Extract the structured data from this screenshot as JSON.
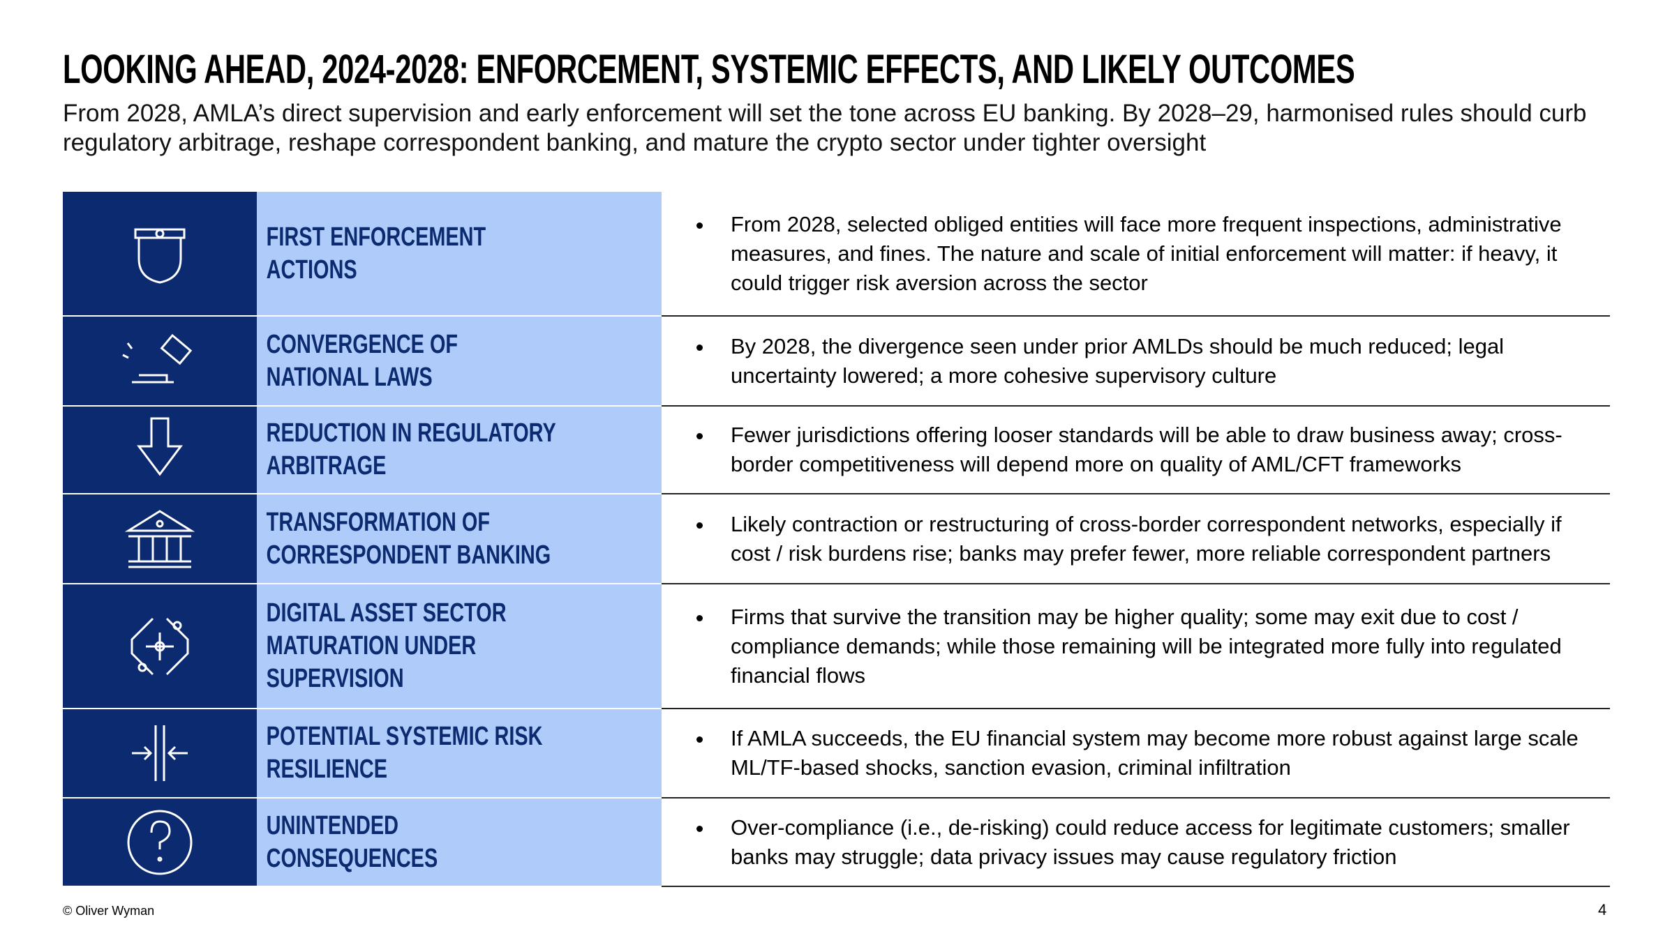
{
  "header": {
    "title": "LOOKING AHEAD, 2024-2028: ENFORCEMENT, SYSTEMIC EFFECTS, AND LIKELY OUTCOMES",
    "subtitle": "From 2028, AMLA’s direct supervision and early enforcement will set the tone across EU banking. By 2028–29, harmonised rules should curb regulatory arbitrage, reshape correspondent banking, and mature the crypto sector under tighter oversight"
  },
  "rows": [
    {
      "label": "FIRST ENFORCEMENT ACTIONS",
      "bullet": "From 2028, selected obliged entities will face more frequent inspections, administrative measures, and fines. The nature and scale of initial enforcement will matter: if heavy, it could trigger risk aversion across the sector"
    },
    {
      "label": "CONVERGENCE OF NATIONAL LAWS",
      "bullet": "By 2028, the divergence seen under prior AMLDs should be much reduced; legal uncertainty lowered; a more cohesive supervisory culture"
    },
    {
      "label": "REDUCTION IN REGULATORY ARBITRAGE",
      "bullet": "Fewer jurisdictions offering looser standards will be able to draw business away; cross-border competitiveness will depend more on quality of AML/CFT frameworks"
    },
    {
      "label": "TRANSFORMATION OF CORRESPONDENT BANKING",
      "bullet": "Likely contraction or restructuring of cross-border correspondent networks, especially if cost / risk burdens rise; banks may prefer fewer, more reliable correspondent partners"
    },
    {
      "label": "DIGITAL ASSET SECTOR MATURATION UNDER SUPERVISION",
      "bullet": "Firms that survive the transition may be higher quality; some may exit due to cost / compliance demands; while those remaining will be integrated more fully into regulated financial flows"
    },
    {
      "label": "POTENTIAL SYSTEMIC RISK RESILIENCE",
      "bullet": "If AMLA succeeds, the EU financial system may become more robust against large scale ML/TF-based shocks, sanction evasion, criminal infiltration"
    },
    {
      "label": "UNINTENDED CONSEQUENCES",
      "bullet": "Over-compliance (i.e., de-risking) could reduce access for legitimate customers; smaller banks may struggle; data privacy issues may cause regulatory friction"
    }
  ],
  "footer": {
    "copyright": "© Oliver Wyman",
    "page_number": "4"
  }
}
